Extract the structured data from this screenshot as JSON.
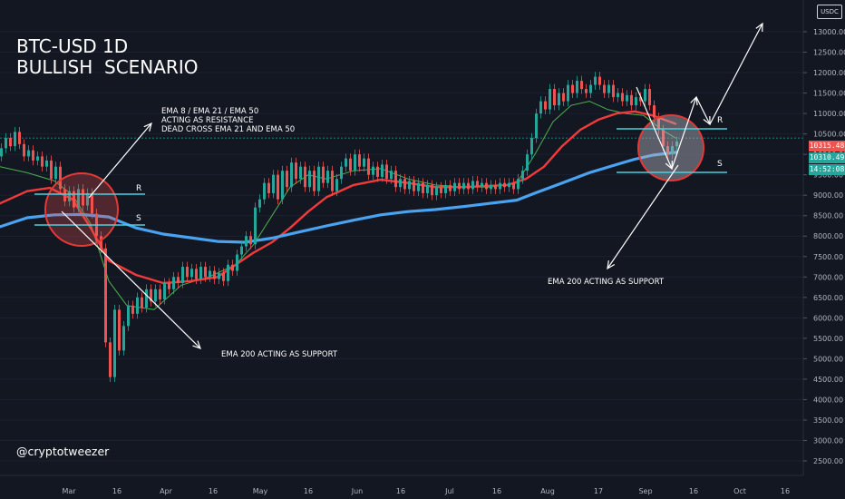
{
  "chart_data": {
    "type": "candlestick",
    "title": "BTC-USD 1D",
    "subtitle": "BULLISH  SCENARIO",
    "currency": "USDC",
    "handle": "@cryptotweezer",
    "y_ticks": [
      "13000.00",
      "12500.00",
      "12000.00",
      "11500.00",
      "11000.00",
      "10500.00",
      "10000.00",
      "9500.00",
      "9000.00",
      "8500.00",
      "8000.00",
      "7500.00",
      "7000.00",
      "6500.00",
      "6000.00",
      "5500.00",
      "5000.00",
      "4500.00",
      "4000.00",
      "3500.00",
      "3000.00",
      "2500.00"
    ],
    "x_ticks": [
      "Mar",
      "16",
      "Apr",
      "16",
      "May",
      "16",
      "Jun",
      "16",
      "Jul",
      "16",
      "Aug",
      "17",
      "Sep",
      "16",
      "Oct",
      "16"
    ],
    "ylim": [
      2350,
      13650
    ],
    "price_labels": {
      "last": "10315.48",
      "current": "10310.49",
      "countdown": "14:52:08"
    },
    "colors": {
      "up": "#26a69a",
      "down": "#ef5350",
      "ema8": "#f0566b",
      "ema21": "#4caf50",
      "ema50": "#f23a3a",
      "ema200": "#4aa3f0",
      "level": "#4ad0e0"
    },
    "annotations": {
      "top": [
        "EMA 8  /  EMA 21  /  EMA 50",
        "ACTING AS RESISTANCE",
        "DEAD CROSS EMA 21 AND EMA 50"
      ],
      "left_support": "EMA 200 ACTING AS SUPPORT",
      "right_support": "EMA 200 ACTING AS SUPPORT",
      "r": "R",
      "s": "S"
    },
    "ema200": [
      [
        0,
        8230
      ],
      [
        30,
        8450
      ],
      [
        60,
        8520
      ],
      [
        90,
        8530
      ],
      [
        120,
        8470
      ],
      [
        150,
        8200
      ],
      [
        180,
        8050
      ],
      [
        210,
        7960
      ],
      [
        240,
        7870
      ],
      [
        270,
        7850
      ],
      [
        300,
        7950
      ],
      [
        330,
        8100
      ],
      [
        360,
        8250
      ],
      [
        390,
        8390
      ],
      [
        420,
        8520
      ],
      [
        450,
        8600
      ],
      [
        480,
        8650
      ],
      [
        510,
        8720
      ],
      [
        540,
        8800
      ],
      [
        570,
        8880
      ],
      [
        590,
        9050
      ],
      [
        620,
        9300
      ],
      [
        650,
        9550
      ],
      [
        680,
        9750
      ],
      [
        700,
        9880
      ],
      [
        720,
        9980
      ],
      [
        746,
        10050
      ]
    ],
    "ema50": [
      [
        0,
        8800
      ],
      [
        30,
        9100
      ],
      [
        55,
        9180
      ],
      [
        80,
        8900
      ],
      [
        100,
        8200
      ],
      [
        120,
        7400
      ],
      [
        150,
        7050
      ],
      [
        180,
        6850
      ],
      [
        210,
        6900
      ],
      [
        240,
        7000
      ],
      [
        260,
        7300
      ],
      [
        280,
        7600
      ],
      [
        300,
        7850
      ],
      [
        320,
        8200
      ],
      [
        340,
        8600
      ],
      [
        360,
        8950
      ],
      [
        390,
        9250
      ],
      [
        420,
        9380
      ],
      [
        450,
        9300
      ],
      [
        480,
        9200
      ],
      [
        510,
        9200
      ],
      [
        540,
        9230
      ],
      [
        560,
        9250
      ],
      [
        580,
        9400
      ],
      [
        600,
        9700
      ],
      [
        620,
        10200
      ],
      [
        640,
        10600
      ],
      [
        660,
        10850
      ],
      [
        680,
        11000
      ],
      [
        700,
        11050
      ],
      [
        720,
        10950
      ],
      [
        745,
        10750
      ]
    ],
    "ema21": [
      [
        0,
        9700
      ],
      [
        30,
        9550
      ],
      [
        60,
        9350
      ],
      [
        80,
        9000
      ],
      [
        100,
        8300
      ],
      [
        120,
        6900
      ],
      [
        140,
        6300
      ],
      [
        170,
        6200
      ],
      [
        200,
        6800
      ],
      [
        230,
        7000
      ],
      [
        260,
        7300
      ],
      [
        280,
        7800
      ],
      [
        300,
        8500
      ],
      [
        320,
        9200
      ],
      [
        340,
        9500
      ],
      [
        360,
        9400
      ],
      [
        390,
        9600
      ],
      [
        420,
        9650
      ],
      [
        450,
        9400
      ],
      [
        480,
        9250
      ],
      [
        510,
        9200
      ],
      [
        540,
        9200
      ],
      [
        570,
        9300
      ],
      [
        590,
        10000
      ],
      [
        610,
        10800
      ],
      [
        630,
        11200
      ],
      [
        650,
        11300
      ],
      [
        670,
        11100
      ],
      [
        690,
        11000
      ],
      [
        710,
        10950
      ],
      [
        730,
        10600
      ],
      [
        745,
        10400
      ]
    ],
    "candles": [
      [
        0,
        9950,
        10150
      ],
      [
        5,
        10150,
        10400
      ],
      [
        10,
        10400,
        10200
      ],
      [
        15,
        10200,
        10550
      ],
      [
        20,
        10550,
        10250
      ],
      [
        25,
        10250,
        9950
      ],
      [
        30,
        9950,
        10100
      ],
      [
        35,
        10100,
        9850
      ],
      [
        40,
        9850,
        9950
      ],
      [
        45,
        9950,
        9700
      ],
      [
        50,
        9700,
        9850
      ],
      [
        55,
        9850,
        9400
      ],
      [
        60,
        9400,
        9700
      ],
      [
        65,
        9700,
        9150
      ],
      [
        70,
        9150,
        8850
      ],
      [
        75,
        8850,
        9100
      ],
      [
        80,
        9100,
        8700
      ],
      [
        85,
        8700,
        9150
      ],
      [
        90,
        9150,
        8750
      ],
      [
        95,
        8750,
        9050
      ],
      [
        100,
        9050,
        8550
      ],
      [
        105,
        8550,
        8000
      ],
      [
        110,
        8000,
        7700
      ],
      [
        115,
        7700,
        5400
      ],
      [
        120,
        5400,
        4550
      ],
      [
        125,
        4550,
        6200
      ],
      [
        130,
        6200,
        5200
      ],
      [
        135,
        5200,
        5800
      ],
      [
        140,
        5800,
        6300
      ],
      [
        145,
        6300,
        6100
      ],
      [
        150,
        6100,
        6500
      ],
      [
        155,
        6500,
        6250
      ],
      [
        160,
        6250,
        6700
      ],
      [
        165,
        6700,
        6400
      ],
      [
        170,
        6400,
        6700
      ],
      [
        175,
        6700,
        6450
      ],
      [
        180,
        6450,
        6850
      ],
      [
        185,
        6850,
        6700
      ],
      [
        190,
        6700,
        7000
      ],
      [
        195,
        7000,
        6850
      ],
      [
        200,
        6850,
        7250
      ],
      [
        205,
        7250,
        7000
      ],
      [
        210,
        7000,
        7200
      ],
      [
        215,
        7200,
        6950
      ],
      [
        220,
        6950,
        7250
      ],
      [
        225,
        7250,
        7000
      ],
      [
        230,
        7000,
        7150
      ],
      [
        235,
        7150,
        6950
      ],
      [
        240,
        6950,
        7100
      ],
      [
        245,
        7100,
        6900
      ],
      [
        250,
        6900,
        7300
      ],
      [
        255,
        7300,
        7150
      ],
      [
        260,
        7150,
        7550
      ],
      [
        265,
        7550,
        7750
      ],
      [
        270,
        7750,
        8000
      ],
      [
        275,
        8000,
        7800
      ],
      [
        280,
        7800,
        8700
      ],
      [
        285,
        8700,
        8900
      ],
      [
        290,
        8900,
        9300
      ],
      [
        295,
        9300,
        9050
      ],
      [
        300,
        9050,
        9500
      ],
      [
        305,
        9500,
        8900
      ],
      [
        310,
        8900,
        9600
      ],
      [
        315,
        9600,
        9200
      ],
      [
        320,
        9200,
        9800
      ],
      [
        325,
        9800,
        9400
      ],
      [
        330,
        9400,
        9700
      ],
      [
        335,
        9700,
        9200
      ],
      [
        340,
        9200,
        9600
      ],
      [
        345,
        9600,
        9100
      ],
      [
        350,
        9100,
        9700
      ],
      [
        355,
        9700,
        9300
      ],
      [
        360,
        9300,
        9600
      ],
      [
        365,
        9600,
        9100
      ],
      [
        370,
        9100,
        9400
      ],
      [
        375,
        9400,
        9700
      ],
      [
        380,
        9700,
        9900
      ],
      [
        385,
        9900,
        9600
      ],
      [
        390,
        9600,
        10000
      ],
      [
        395,
        10000,
        9700
      ],
      [
        400,
        9700,
        9900
      ],
      [
        405,
        9900,
        9500
      ],
      [
        410,
        9500,
        9700
      ],
      [
        415,
        9700,
        9450
      ],
      [
        420,
        9450,
        9750
      ],
      [
        425,
        9750,
        9400
      ],
      [
        430,
        9400,
        9600
      ],
      [
        435,
        9600,
        9200
      ],
      [
        440,
        9200,
        9400
      ],
      [
        445,
        9400,
        9150
      ],
      [
        450,
        9150,
        9350
      ],
      [
        455,
        9350,
        9100
      ],
      [
        460,
        9100,
        9300
      ],
      [
        465,
        9300,
        9050
      ],
      [
        470,
        9050,
        9250
      ],
      [
        475,
        9250,
        9000
      ],
      [
        480,
        9000,
        9200
      ],
      [
        485,
        9200,
        9050
      ],
      [
        490,
        9050,
        9250
      ],
      [
        495,
        9250,
        9100
      ],
      [
        500,
        9100,
        9300
      ],
      [
        505,
        9300,
        9150
      ],
      [
        510,
        9150,
        9300
      ],
      [
        515,
        9300,
        9150
      ],
      [
        520,
        9150,
        9350
      ],
      [
        525,
        9350,
        9200
      ],
      [
        530,
        9200,
        9300
      ],
      [
        535,
        9300,
        9150
      ],
      [
        540,
        9150,
        9250
      ],
      [
        545,
        9250,
        9150
      ],
      [
        550,
        9150,
        9300
      ],
      [
        555,
        9300,
        9200
      ],
      [
        560,
        9200,
        9300
      ],
      [
        565,
        9300,
        9150
      ],
      [
        570,
        9150,
        9400
      ],
      [
        575,
        9400,
        9600
      ],
      [
        580,
        9600,
        10000
      ],
      [
        585,
        10000,
        10400
      ],
      [
        590,
        10400,
        11000
      ],
      [
        595,
        11000,
        11300
      ],
      [
        600,
        11300,
        11100
      ],
      [
        605,
        11100,
        11600
      ],
      [
        610,
        11600,
        11200
      ],
      [
        615,
        11200,
        11500
      ],
      [
        620,
        11500,
        11300
      ],
      [
        625,
        11300,
        11700
      ],
      [
        630,
        11700,
        11500
      ],
      [
        635,
        11500,
        11800
      ],
      [
        640,
        11800,
        11600
      ],
      [
        645,
        11600,
        11500
      ],
      [
        650,
        11500,
        11700
      ],
      [
        655,
        11700,
        11900
      ],
      [
        660,
        11900,
        11700
      ],
      [
        665,
        11700,
        11500
      ],
      [
        670,
        11500,
        11700
      ],
      [
        675,
        11700,
        11400
      ],
      [
        680,
        11400,
        11500
      ],
      [
        685,
        11500,
        11300
      ],
      [
        690,
        11300,
        11450
      ],
      [
        695,
        11450,
        11200
      ],
      [
        700,
        11200,
        11400
      ],
      [
        705,
        11400,
        11300
      ],
      [
        710,
        11300,
        11600
      ],
      [
        715,
        11600,
        11200
      ],
      [
        720,
        11200,
        10900
      ],
      [
        725,
        10900,
        10600
      ],
      [
        730,
        10600,
        10200
      ],
      [
        735,
        10200,
        10000
      ],
      [
        740,
        10000,
        10200
      ],
      [
        745,
        10200,
        10315
      ]
    ]
  }
}
